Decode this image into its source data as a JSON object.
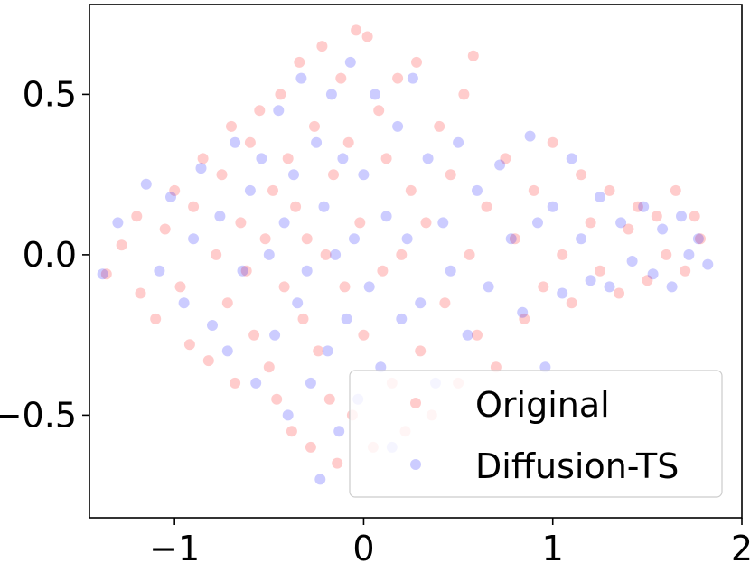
{
  "chart_data": {
    "type": "scatter",
    "title": "",
    "xlabel": "",
    "ylabel": "",
    "xlim": [
      -1.45,
      2.0
    ],
    "ylim": [
      -0.82,
      0.78
    ],
    "x_ticks": [
      -1,
      0,
      1,
      2
    ],
    "x_tick_labels": [
      "−1",
      "0",
      "1",
      "2"
    ],
    "y_ticks": [
      -0.5,
      0.0,
      0.5
    ],
    "y_tick_labels": [
      "−0.5",
      "0.0",
      "0.5"
    ],
    "grid": false,
    "legend": {
      "placement": "lower-right",
      "entries": [
        "Original",
        "Diffusion-TS"
      ]
    },
    "series": [
      {
        "name": "Original",
        "color": "#ff0000",
        "opacity": 0.2,
        "points": [
          [
            -1.36,
            -0.06
          ],
          [
            -1.28,
            0.03
          ],
          [
            -1.2,
            0.12
          ],
          [
            -1.18,
            -0.12
          ],
          [
            -1.1,
            -0.2
          ],
          [
            -1.05,
            0.08
          ],
          [
            -1.0,
            0.2
          ],
          [
            -0.97,
            -0.1
          ],
          [
            -0.92,
            -0.28
          ],
          [
            -0.9,
            0.15
          ],
          [
            -0.85,
            0.3
          ],
          [
            -0.82,
            -0.33
          ],
          [
            -0.78,
            0.0
          ],
          [
            -0.75,
            0.25
          ],
          [
            -0.72,
            -0.15
          ],
          [
            -0.7,
            0.4
          ],
          [
            -0.68,
            -0.4
          ],
          [
            -0.65,
            0.1
          ],
          [
            -0.62,
            -0.05
          ],
          [
            -0.6,
            0.35
          ],
          [
            -0.58,
            -0.25
          ],
          [
            -0.55,
            0.45
          ],
          [
            -0.52,
            0.05
          ],
          [
            -0.5,
            -0.35
          ],
          [
            -0.48,
            0.2
          ],
          [
            -0.46,
            -0.45
          ],
          [
            -0.44,
            0.5
          ],
          [
            -0.42,
            -0.1
          ],
          [
            -0.4,
            0.3
          ],
          [
            -0.38,
            -0.55
          ],
          [
            -0.36,
            0.15
          ],
          [
            -0.34,
            0.6
          ],
          [
            -0.32,
            -0.2
          ],
          [
            -0.3,
            0.05
          ],
          [
            -0.28,
            -0.6
          ],
          [
            -0.26,
            0.4
          ],
          [
            -0.24,
            -0.3
          ],
          [
            -0.22,
            0.65
          ],
          [
            -0.2,
            0.0
          ],
          [
            -0.18,
            -0.45
          ],
          [
            -0.16,
            0.25
          ],
          [
            -0.14,
            -0.65
          ],
          [
            -0.12,
            0.55
          ],
          [
            -0.1,
            -0.1
          ],
          [
            -0.08,
            0.35
          ],
          [
            -0.06,
            -0.5
          ],
          [
            -0.04,
            0.7
          ],
          [
            -0.02,
            0.1
          ],
          [
            0.0,
            -0.25
          ],
          [
            0.02,
            0.68
          ],
          [
            0.05,
            -0.6
          ],
          [
            0.08,
            0.45
          ],
          [
            0.1,
            -0.05
          ],
          [
            0.12,
            0.3
          ],
          [
            0.15,
            -0.4
          ],
          [
            0.18,
            0.55
          ],
          [
            0.2,
            0.0
          ],
          [
            0.22,
            -0.55
          ],
          [
            0.25,
            0.2
          ],
          [
            0.28,
            0.6
          ],
          [
            0.3,
            -0.3
          ],
          [
            0.33,
            0.1
          ],
          [
            0.36,
            -0.5
          ],
          [
            0.4,
            0.4
          ],
          [
            0.43,
            -0.15
          ],
          [
            0.46,
            0.25
          ],
          [
            0.5,
            -0.4
          ],
          [
            0.53,
            0.5
          ],
          [
            0.56,
            0.0
          ],
          [
            0.58,
            0.62
          ],
          [
            0.6,
            -0.25
          ],
          [
            0.65,
            0.15
          ],
          [
            0.7,
            -0.35
          ],
          [
            0.75,
            0.3
          ],
          [
            0.8,
            0.05
          ],
          [
            0.85,
            -0.2
          ],
          [
            0.9,
            0.2
          ],
          [
            0.95,
            -0.1
          ],
          [
            1.0,
            0.35
          ],
          [
            1.05,
            0.0
          ],
          [
            1.1,
            -0.15
          ],
          [
            1.15,
            0.25
          ],
          [
            1.2,
            0.1
          ],
          [
            1.25,
            -0.05
          ],
          [
            1.3,
            0.2
          ],
          [
            1.35,
            -0.12
          ],
          [
            1.4,
            0.08
          ],
          [
            1.45,
            0.15
          ],
          [
            1.5,
            -0.08
          ],
          [
            1.55,
            0.12
          ],
          [
            1.6,
            0.0
          ],
          [
            1.65,
            0.2
          ],
          [
            1.7,
            -0.05
          ],
          [
            1.75,
            0.12
          ],
          [
            1.78,
            0.05
          ]
        ]
      },
      {
        "name": "Diffusion-TS",
        "color": "#0000ff",
        "opacity": 0.2,
        "points": [
          [
            -1.38,
            -0.06
          ],
          [
            -1.3,
            0.1
          ],
          [
            -1.15,
            0.22
          ],
          [
            -1.08,
            -0.05
          ],
          [
            -1.02,
            0.18
          ],
          [
            -0.95,
            -0.15
          ],
          [
            -0.9,
            0.05
          ],
          [
            -0.86,
            0.27
          ],
          [
            -0.8,
            -0.22
          ],
          [
            -0.76,
            0.12
          ],
          [
            -0.72,
            -0.3
          ],
          [
            -0.68,
            0.35
          ],
          [
            -0.64,
            -0.05
          ],
          [
            -0.6,
            0.2
          ],
          [
            -0.57,
            -0.4
          ],
          [
            -0.54,
            0.3
          ],
          [
            -0.5,
            0.0
          ],
          [
            -0.47,
            -0.25
          ],
          [
            -0.45,
            0.45
          ],
          [
            -0.42,
            0.1
          ],
          [
            -0.4,
            -0.5
          ],
          [
            -0.37,
            0.25
          ],
          [
            -0.35,
            -0.15
          ],
          [
            -0.33,
            0.55
          ],
          [
            -0.3,
            -0.05
          ],
          [
            -0.28,
            -0.4
          ],
          [
            -0.25,
            0.35
          ],
          [
            -0.23,
            -0.7
          ],
          [
            -0.21,
            0.15
          ],
          [
            -0.19,
            -0.3
          ],
          [
            -0.17,
            0.5
          ],
          [
            -0.15,
            0.0
          ],
          [
            -0.13,
            -0.55
          ],
          [
            -0.11,
            0.3
          ],
          [
            -0.09,
            -0.2
          ],
          [
            -0.07,
            0.6
          ],
          [
            -0.05,
            0.05
          ],
          [
            -0.03,
            -0.45
          ],
          [
            0.0,
            0.25
          ],
          [
            0.03,
            -0.1
          ],
          [
            0.06,
            0.5
          ],
          [
            0.09,
            -0.35
          ],
          [
            0.12,
            0.12
          ],
          [
            0.15,
            -0.6
          ],
          [
            0.18,
            0.4
          ],
          [
            0.2,
            -0.2
          ],
          [
            0.23,
            0.05
          ],
          [
            0.26,
            0.55
          ],
          [
            0.3,
            -0.15
          ],
          [
            0.34,
            0.3
          ],
          [
            0.38,
            -0.4
          ],
          [
            0.42,
            0.1
          ],
          [
            0.46,
            -0.05
          ],
          [
            0.5,
            0.35
          ],
          [
            0.55,
            -0.25
          ],
          [
            0.6,
            0.2
          ],
          [
            0.66,
            -0.1
          ],
          [
            0.72,
            0.28
          ],
          [
            0.78,
            0.05
          ],
          [
            0.84,
            -0.18
          ],
          [
            0.88,
            0.37
          ],
          [
            0.92,
            0.1
          ],
          [
            0.96,
            -0.35
          ],
          [
            1.0,
            0.15
          ],
          [
            1.05,
            -0.12
          ],
          [
            1.1,
            0.3
          ],
          [
            1.15,
            0.05
          ],
          [
            1.2,
            -0.08
          ],
          [
            1.25,
            0.18
          ],
          [
            1.3,
            -0.1
          ],
          [
            1.36,
            0.1
          ],
          [
            1.42,
            -0.02
          ],
          [
            1.48,
            0.15
          ],
          [
            1.53,
            -0.06
          ],
          [
            1.58,
            0.08
          ],
          [
            1.63,
            -0.1
          ],
          [
            1.68,
            0.12
          ],
          [
            1.72,
            0.0
          ],
          [
            1.77,
            0.05
          ],
          [
            1.82,
            -0.03
          ]
        ]
      }
    ]
  }
}
